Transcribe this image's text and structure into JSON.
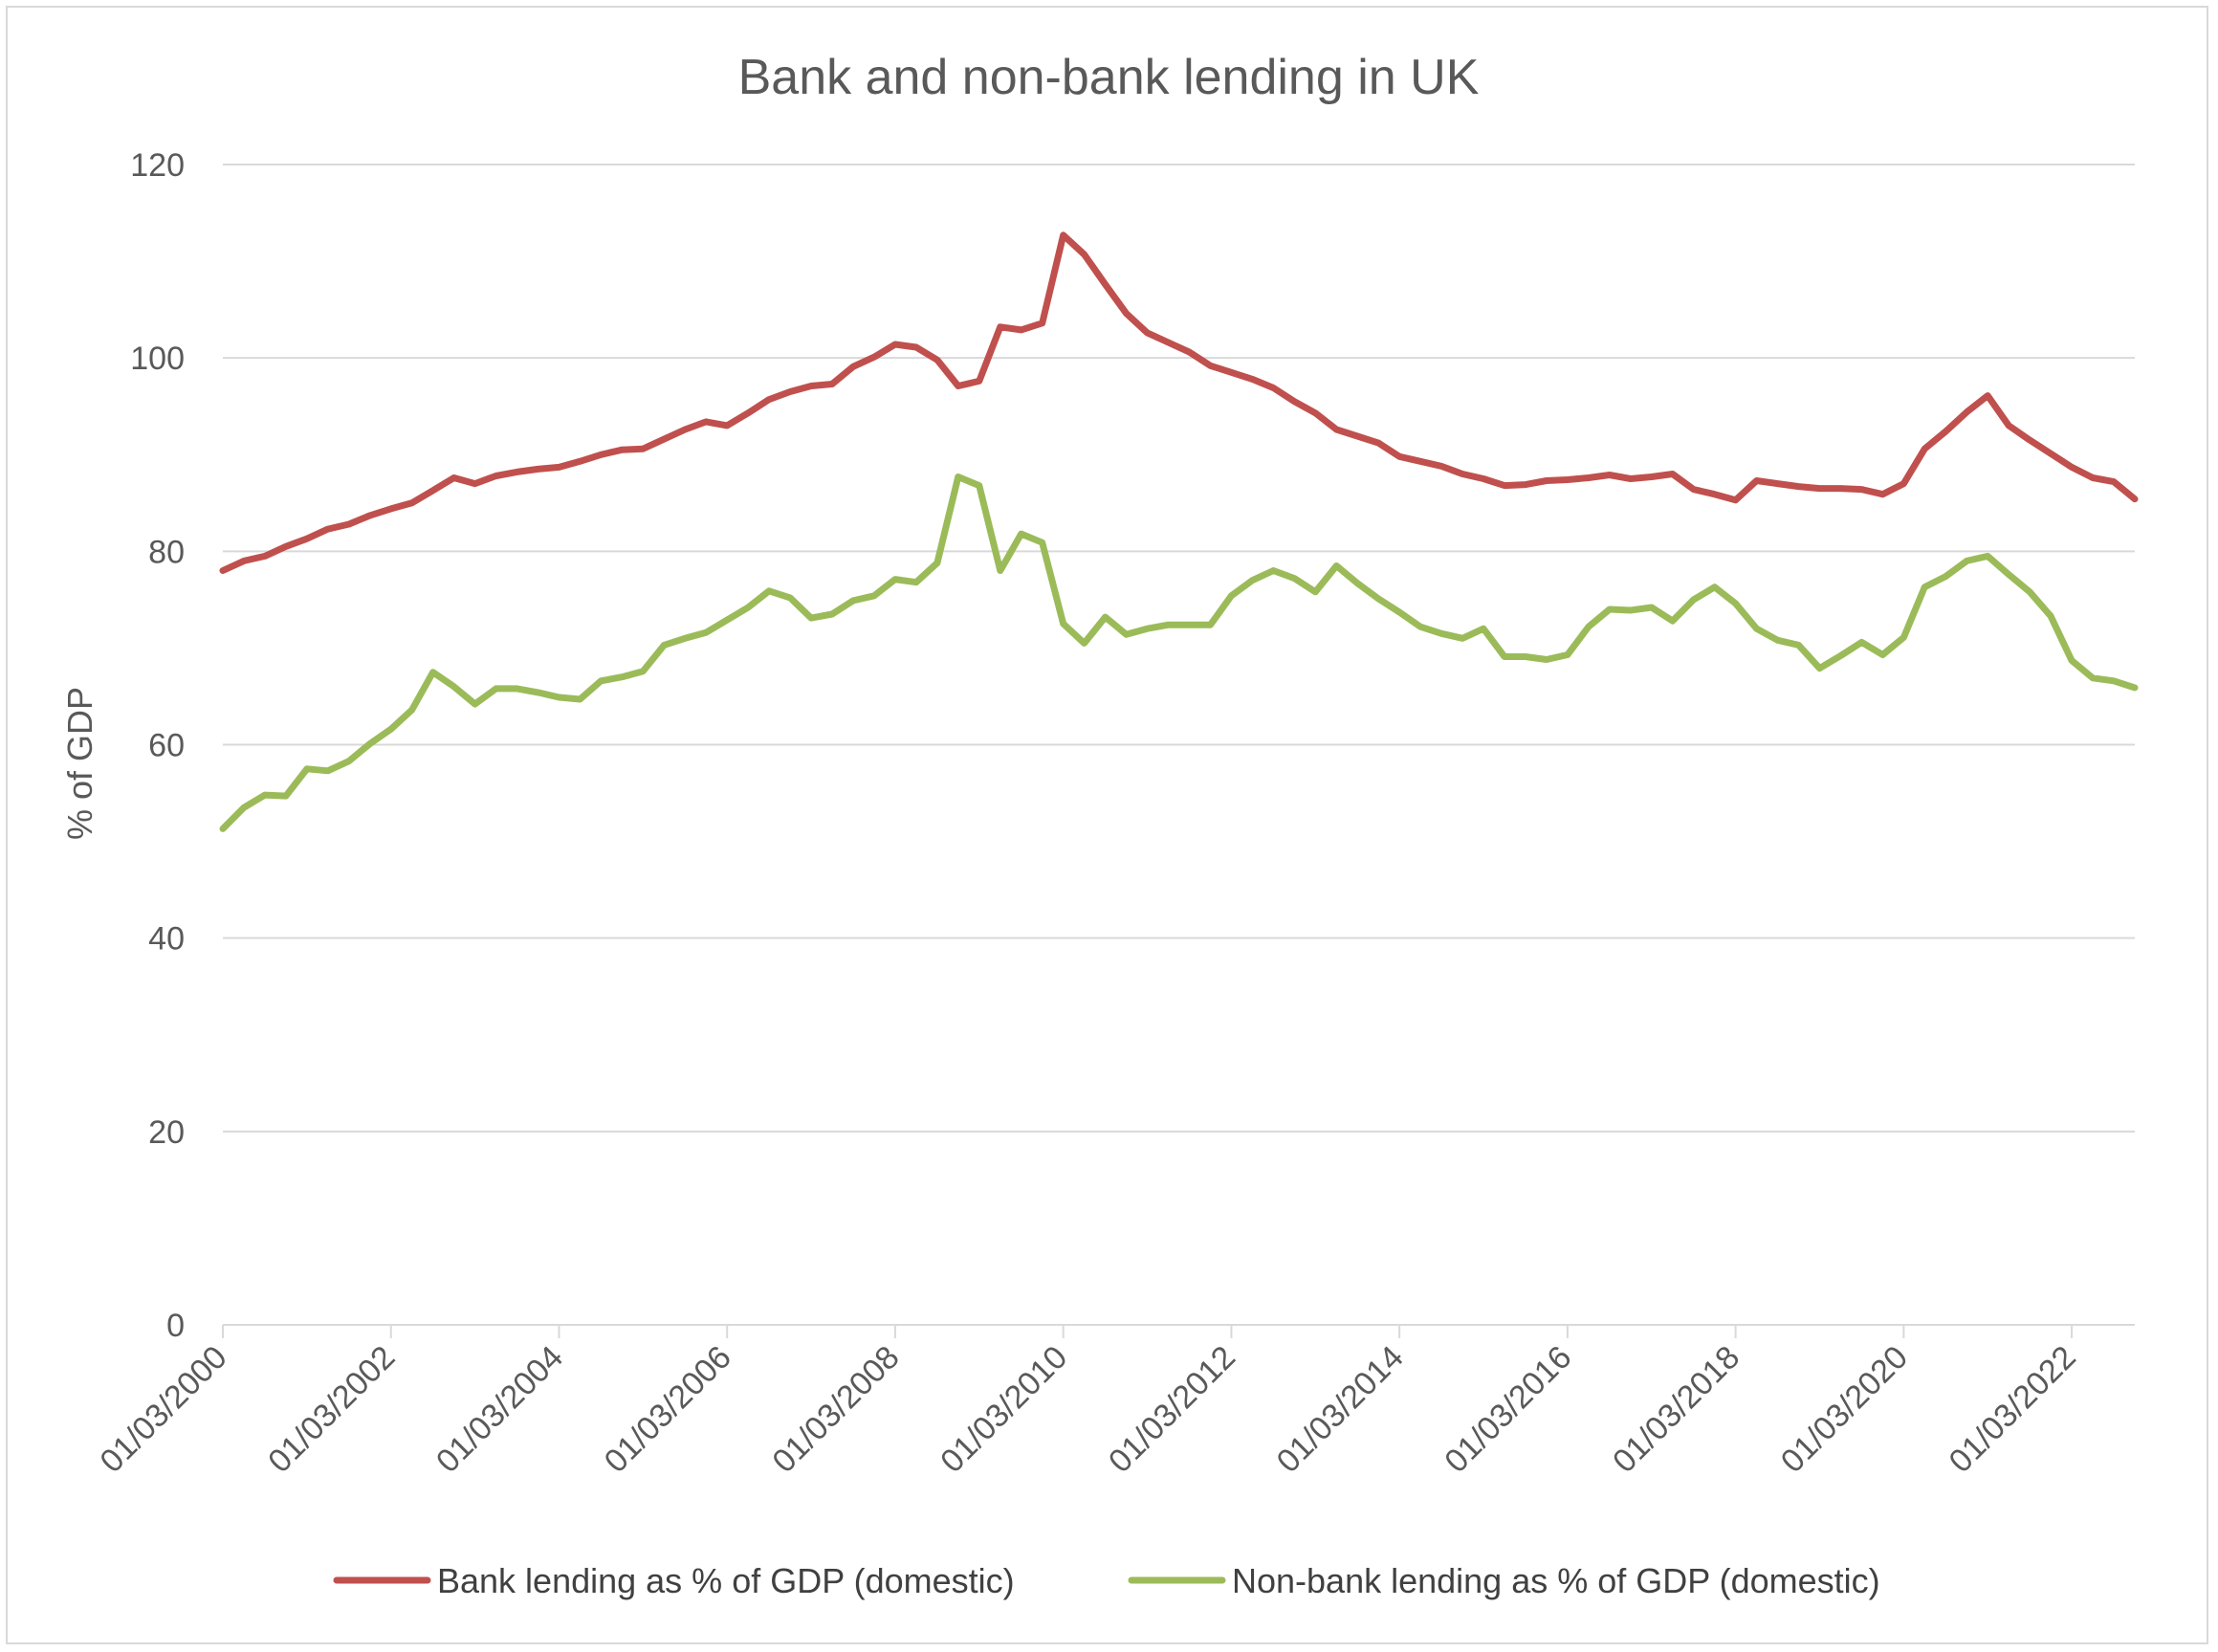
{
  "colors": {
    "bank": "#c0504d",
    "nonbank": "#9bbb59",
    "grid": "#d9d9d9",
    "text": "#595959"
  },
  "chart_data": {
    "type": "line",
    "title": "Bank and non-bank lending in UK",
    "xlabel": "",
    "ylabel": "% of GDP",
    "ylim": [
      0,
      120
    ],
    "yticks": [
      "0",
      "20",
      "40",
      "60",
      "80",
      "100",
      "120"
    ],
    "xticks": [
      "01/03/2000",
      "01/03/2002",
      "01/03/2004",
      "01/03/2006",
      "01/03/2008",
      "01/03/2010",
      "01/03/2012",
      "01/03/2014",
      "01/03/2016",
      "01/03/2018",
      "01/03/2020",
      "01/03/2022"
    ],
    "x_start": "2000-03-01",
    "x_step": "quarter",
    "grid": true,
    "legend": "bottom",
    "series": [
      {
        "name": "Bank lending as % of GDP (domestic)",
        "color": "#c0504d",
        "values": [
          78,
          79,
          79.5,
          80.5,
          81.3,
          82.3,
          82.8,
          83.7,
          84.4,
          85,
          86.3,
          87.6,
          87,
          87.8,
          88.2,
          88.5,
          88.7,
          89.3,
          90,
          90.5,
          90.6,
          91.6,
          92.6,
          93.4,
          93,
          94.3,
          95.7,
          96.5,
          97.1,
          97.3,
          99.1,
          100.1,
          101.4,
          101.1,
          99.8,
          97.1,
          97.6,
          103.2,
          102.9,
          103.6,
          112.7,
          110.7,
          107.6,
          104.6,
          102.6,
          101.6,
          100.6,
          99.2,
          98.5,
          97.8,
          96.9,
          95.5,
          94.3,
          92.6,
          91.9,
          91.2,
          89.8,
          89.3,
          88.8,
          88,
          87.5,
          86.8,
          86.9,
          87.3,
          87.4,
          87.6,
          87.9,
          87.5,
          87.7,
          88,
          86.4,
          85.9,
          85.3,
          87.3,
          87,
          86.7,
          86.5,
          86.5,
          86.4,
          85.9,
          87,
          90.6,
          92.4,
          94.4,
          96.1,
          93,
          91.5,
          90.1,
          88.7,
          87.6,
          87.2,
          85.4
        ]
      },
      {
        "name": "Non-bank lending as % of GDP (domestic)",
        "color": "#9bbb59",
        "values": [
          51.3,
          53.5,
          54.8,
          54.7,
          57.5,
          57.3,
          58.3,
          60.1,
          61.6,
          63.6,
          67.5,
          66,
          64.2,
          65.8,
          65.8,
          65.4,
          64.9,
          64.7,
          66.6,
          67,
          67.6,
          70.3,
          71,
          71.6,
          72.9,
          74.2,
          75.9,
          75.2,
          73.1,
          73.5,
          74.9,
          75.4,
          77.1,
          76.8,
          78.8,
          87.7,
          86.8,
          78,
          81.8,
          80.9,
          72.5,
          70.5,
          73.2,
          71.4,
          72,
          72.4,
          72.4,
          72.4,
          75.4,
          77,
          78,
          77.2,
          75.8,
          78.5,
          76.7,
          75.1,
          73.7,
          72.2,
          71.5,
          71,
          72,
          69.1,
          69.1,
          68.8,
          69.3,
          72.2,
          74,
          73.9,
          74.2,
          72.8,
          75,
          76.3,
          74.6,
          72,
          70.8,
          70.3,
          67.9,
          69.2,
          70.6,
          69.3,
          71.1,
          76.3,
          77.4,
          79,
          79.5,
          77.6,
          75.8,
          73.3,
          68.7,
          66.9,
          66.6,
          65.9
        ]
      }
    ]
  }
}
